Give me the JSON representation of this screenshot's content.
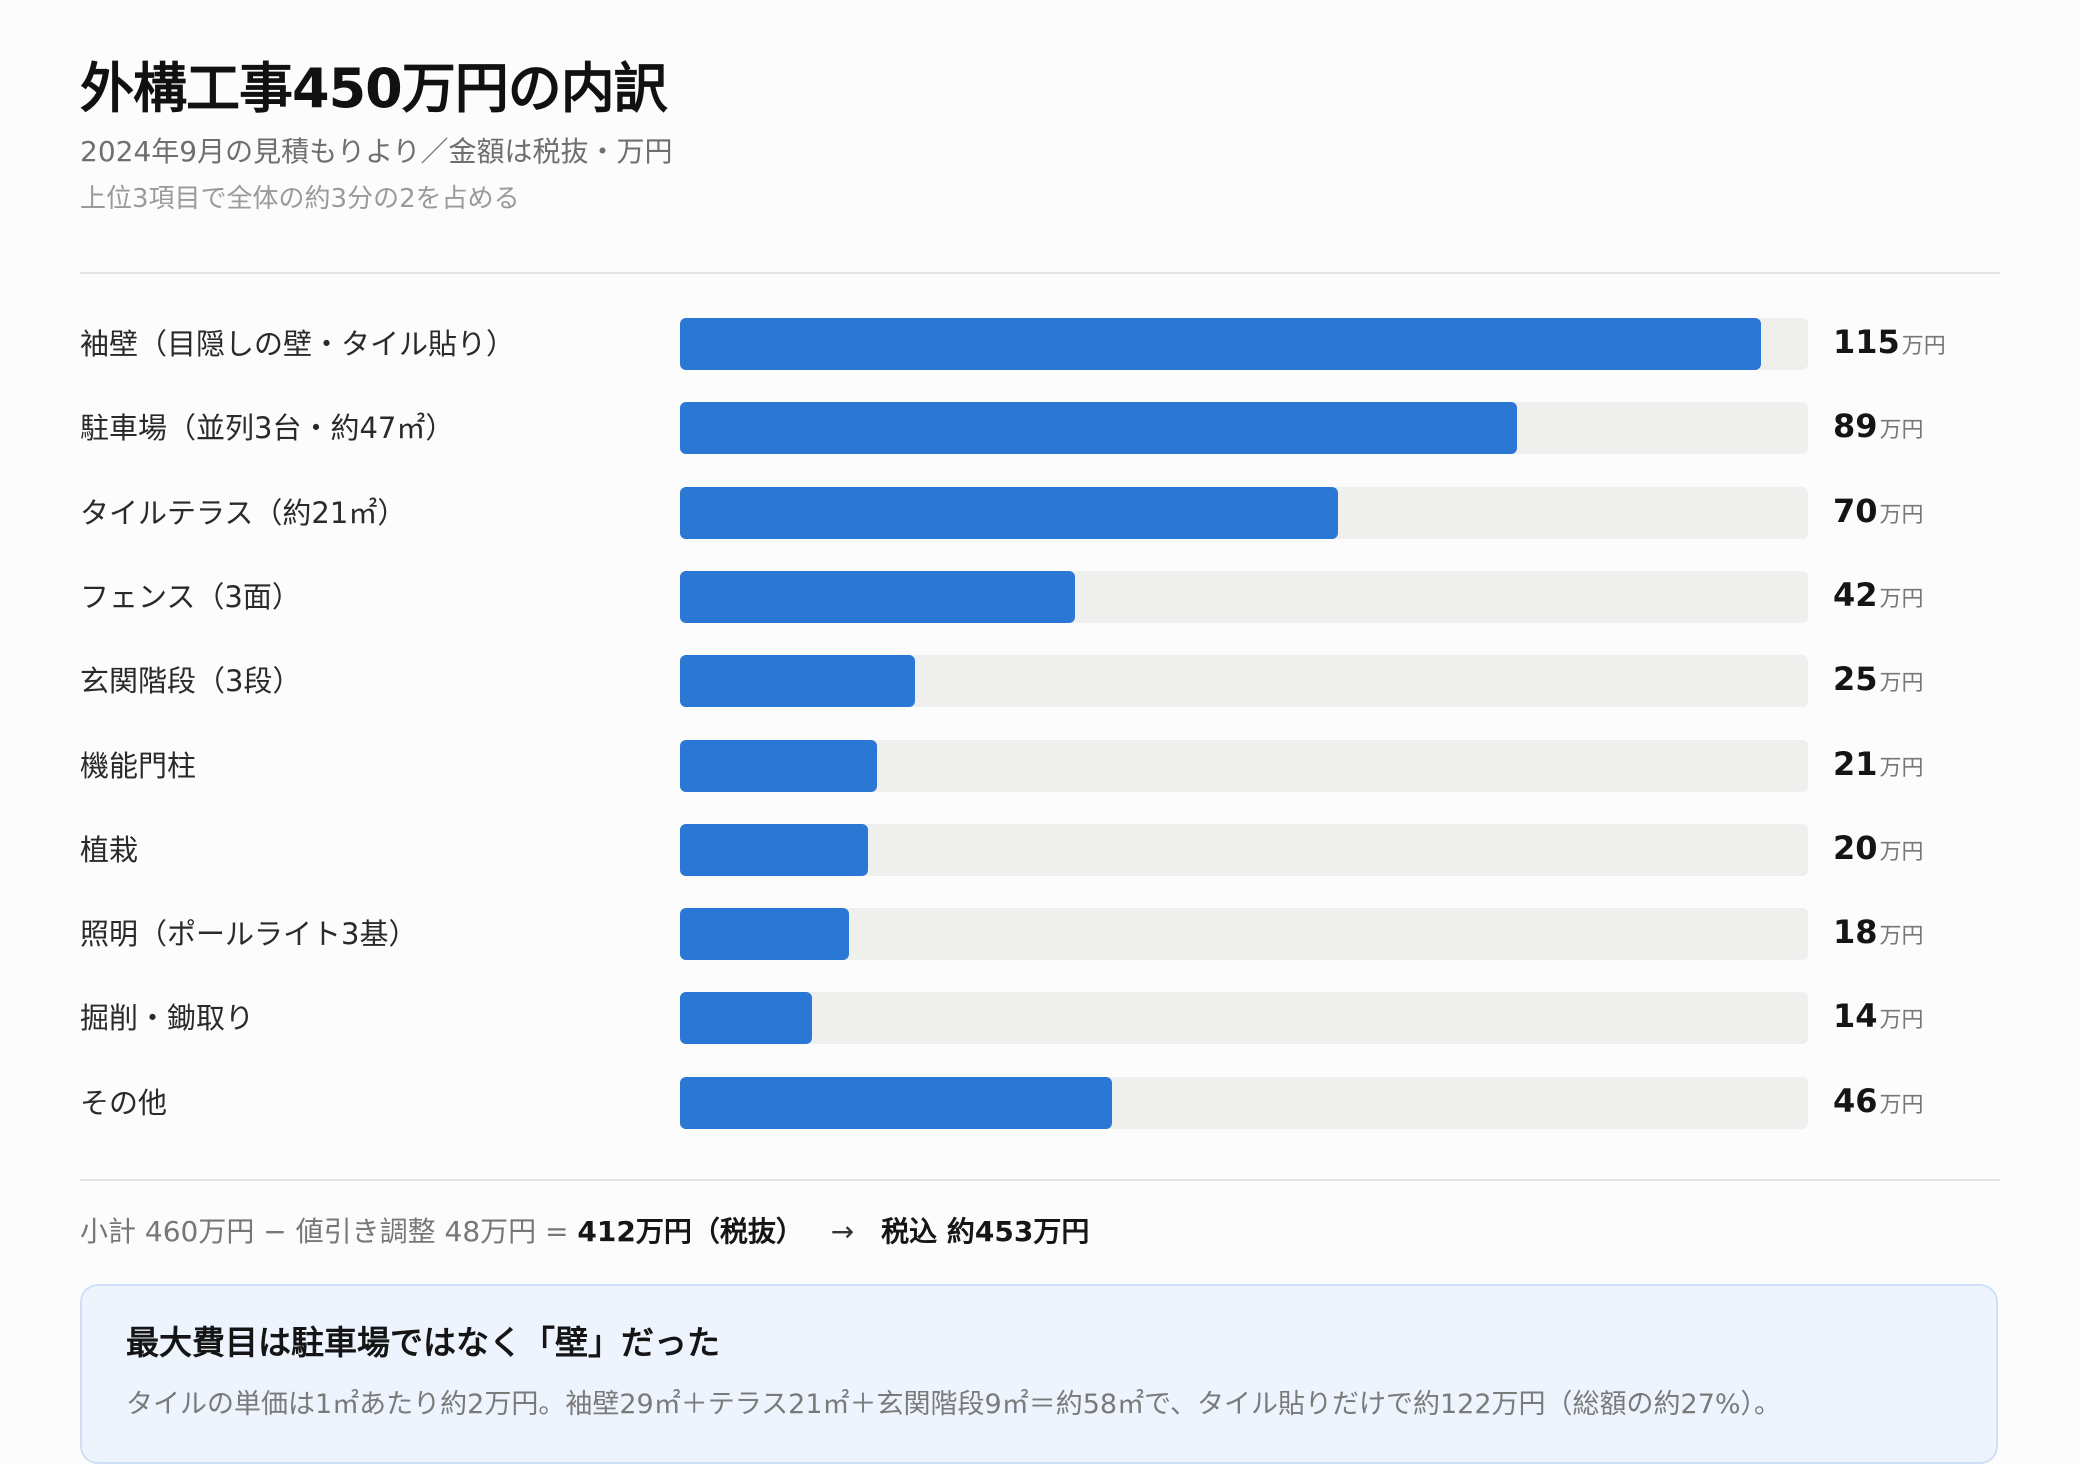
{
  "header": {
    "title": "外構工事450万円の内訳",
    "subtitle": "2024年9月の見積もりより／金額は税抜・万円",
    "note": "上位3項目で全体の約3分の2を占める"
  },
  "chart_data": {
    "type": "bar",
    "orientation": "horizontal",
    "categories": [
      "袖壁（目隠しの壁・タイル貼り）",
      "駐車場（並列3台・約47㎡）",
      "タイルテラス（約21㎡）",
      "フェンス（3面）",
      "玄関階段（3段）",
      "機能門柱",
      "植栽",
      "照明（ポールライト3基）",
      "掘削・鋤取り",
      "その他"
    ],
    "values": [
      115,
      89,
      70,
      42,
      25,
      21,
      20,
      18,
      14,
      46
    ],
    "unit": "万円",
    "xlim": [
      0,
      120
    ],
    "grid": false,
    "bar_color": "#2b78d4",
    "track_color": "#efefed"
  },
  "summary": {
    "subtotal": "小計 460万円 − 値引き調整 48万円 =",
    "net": "412万円（税抜）",
    "arrow": "→",
    "gross": "税込 約453万円"
  },
  "callout": {
    "title": "最大費目は駐車場ではなく「壁」だった",
    "body": "タイルの単価は1㎡あたり約2万円。袖壁29㎡＋テラス21㎡＋玄関階段9㎡＝約58㎡で、タイル貼りだけで約122万円（総額の約27%）。"
  }
}
